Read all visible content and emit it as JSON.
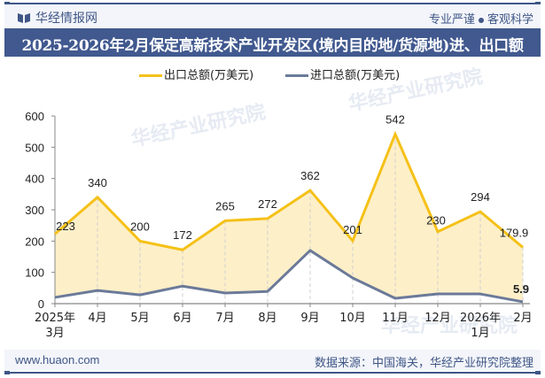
{
  "header": {
    "brand": "华经情报网",
    "slogan_left": "专业严谨",
    "slogan_right": "客观科学"
  },
  "title": "2025-2026年2月保定高新技术产业开发区(境内目的地/货源地)进、出口额",
  "legend": {
    "export_label": "出口总额(万美元)",
    "import_label": "进口总额(万美元)"
  },
  "colors": {
    "export": "#f5c118",
    "export_fill": "#fdefc8",
    "import": "#6b7a99",
    "brand": "#3f5686"
  },
  "watermark": "华经产业研究院",
  "footer": {
    "site": "www.huaon.com",
    "source": "数据来源：中国海关，华经产业研究院整理"
  },
  "chart_data": {
    "type": "area",
    "title": "2025-2026年2月保定高新技术产业开发区(境内目的地/货源地)进、出口额",
    "xlabel": "",
    "ylabel": "",
    "categories": [
      "2025年3月",
      "4月",
      "5月",
      "6月",
      "7月",
      "8月",
      "9月",
      "10月",
      "11月",
      "12月",
      "2026年1月",
      "2月"
    ],
    "x_labels": [
      [
        "2025年",
        "3月"
      ],
      [
        "4月"
      ],
      [
        "5月"
      ],
      [
        "6月"
      ],
      [
        "7月"
      ],
      [
        "8月"
      ],
      [
        "9月"
      ],
      [
        "10月"
      ],
      [
        "11月"
      ],
      [
        "12月"
      ],
      [
        "2026年",
        "1月"
      ],
      [
        "2月"
      ]
    ],
    "series": [
      {
        "name": "出口总额(万美元)",
        "values": [
          223,
          340,
          200,
          172,
          265,
          272,
          362,
          201,
          542,
          230,
          294,
          179.9
        ],
        "labels": [
          "223",
          "340",
          "200",
          "172",
          "265",
          "272",
          "362",
          "201",
          "542",
          "230",
          "294",
          "179.9"
        ]
      },
      {
        "name": "进口总额(万美元)",
        "values": [
          20,
          42,
          28,
          56,
          34,
          39,
          170,
          82,
          17,
          31,
          31,
          5.9
        ],
        "labels": [
          "",
          "",
          "",
          "",
          "",
          "",
          "",
          "",
          "",
          "",
          "",
          "5.9"
        ]
      }
    ],
    "yticks": [
      0,
      100,
      200,
      300,
      400,
      500,
      600
    ],
    "ylim": [
      0,
      600
    ],
    "grid": "vertical dashed lines at categories",
    "legend_position": "top"
  }
}
